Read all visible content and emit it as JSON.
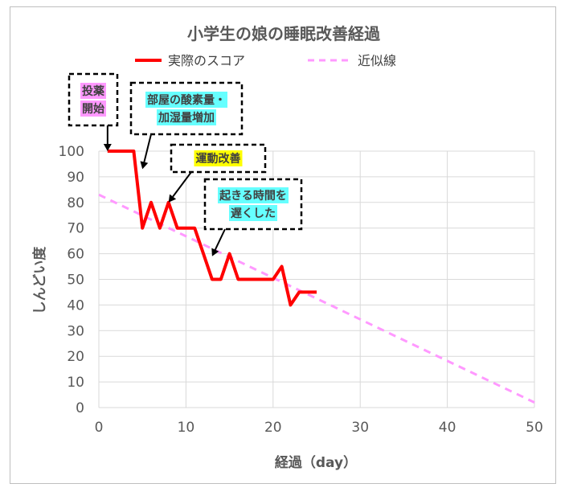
{
  "chart_data": {
    "type": "line",
    "title": "小学生の娘の睡眠改善経過",
    "xlabel": "経過（day）",
    "ylabel": "しんどい度",
    "xlim": [
      0,
      50
    ],
    "ylim": [
      0,
      100
    ],
    "x_ticks": [
      0,
      10,
      20,
      30,
      40,
      50
    ],
    "y_ticks": [
      0,
      10,
      20,
      30,
      40,
      50,
      60,
      70,
      80,
      90,
      100
    ],
    "grid": true,
    "legend_position": "top",
    "series": [
      {
        "name": "実際のスコア",
        "color": "#ff0000",
        "style": "solid",
        "x": [
          1,
          2,
          3,
          4,
          5,
          6,
          7,
          8,
          9,
          10,
          11,
          12,
          13,
          14,
          15,
          16,
          17,
          18,
          19,
          20,
          21,
          22,
          23,
          24,
          25
        ],
        "y": [
          100,
          100,
          100,
          100,
          70,
          80,
          70,
          80,
          70,
          70,
          70,
          60,
          50,
          50,
          60,
          50,
          50,
          50,
          50,
          50,
          55,
          40,
          45,
          45,
          45
        ]
      },
      {
        "name": "近似線",
        "color": "#ff99ff",
        "style": "dashed",
        "x": [
          0,
          50
        ],
        "y": [
          83,
          2
        ]
      }
    ],
    "annotations": [
      {
        "lines": [
          "投薬",
          "開始"
        ],
        "highlight": "#ff99ff",
        "target": [
          1,
          100
        ]
      },
      {
        "lines": [
          "部屋の酸素量・",
          "加湿量増加"
        ],
        "highlight": "#66ffff",
        "target": [
          5,
          93
        ]
      },
      {
        "lines": [
          "運動改善"
        ],
        "highlight": "#ffff00",
        "target": [
          8,
          80
        ]
      },
      {
        "lines": [
          "起きる時間を",
          "遅くした"
        ],
        "highlight": "#66ffff",
        "target": [
          13,
          59
        ]
      }
    ]
  }
}
